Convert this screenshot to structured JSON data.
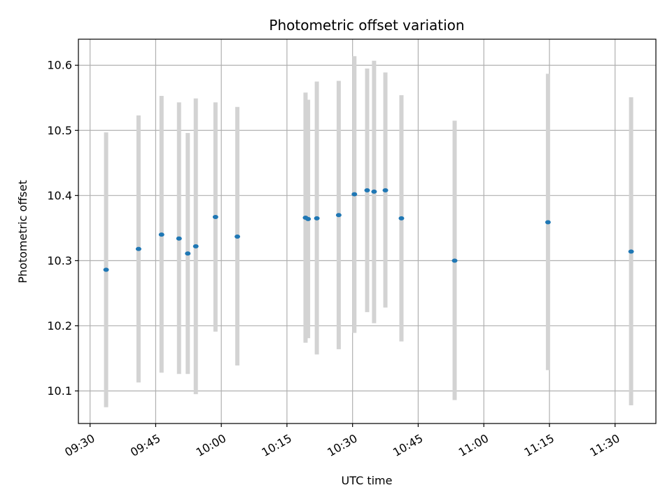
{
  "chart_data": {
    "type": "scatter",
    "title": "Photometric offset variation",
    "xlabel": "UTC time",
    "ylabel": "Photometric offset",
    "x_tick_labels": [
      "09:30",
      "09:45",
      "10:00",
      "10:15",
      "10:30",
      "10:45",
      "11:00",
      "11:15",
      "11:30"
    ],
    "x_ticks": [
      "09:30",
      "09:45",
      "10:00",
      "10:15",
      "10:30",
      "10:45",
      "11:00",
      "11:15",
      "11:30"
    ],
    "y_ticks": [
      10.1,
      10.2,
      10.3,
      10.4,
      10.5,
      10.6
    ],
    "y_tick_labels": [
      "10.1",
      "10.2",
      "10.3",
      "10.4",
      "10.5",
      "10.6"
    ],
    "xlim": [
      "09:27:20",
      "11:39:20"
    ],
    "ylim": [
      10.05,
      10.64
    ],
    "grid": true,
    "colors": {
      "point": "#1f77b4",
      "errorbar": "#d3d3d3",
      "grid": "#b0b0b0"
    },
    "series": [
      {
        "points": [
          {
            "x": "09:33:40",
            "y": 10.286,
            "ylo": 10.075,
            "yhi": 10.497
          },
          {
            "x": "09:41:05",
            "y": 10.318,
            "ylo": 10.113,
            "yhi": 10.523
          },
          {
            "x": "09:46:20",
            "y": 10.34,
            "ylo": 10.128,
            "yhi": 10.553
          },
          {
            "x": "09:50:20",
            "y": 10.334,
            "ylo": 10.126,
            "yhi": 10.543
          },
          {
            "x": "09:52:20",
            "y": 10.311,
            "ylo": 10.126,
            "yhi": 10.496
          },
          {
            "x": "09:54:10",
            "y": 10.322,
            "ylo": 10.095,
            "yhi": 10.549
          },
          {
            "x": "09:58:40",
            "y": 10.367,
            "ylo": 10.191,
            "yhi": 10.543
          },
          {
            "x": "10:03:40",
            "y": 10.337,
            "ylo": 10.139,
            "yhi": 10.536
          },
          {
            "x": "10:19:15",
            "y": 10.366,
            "ylo": 10.174,
            "yhi": 10.558
          },
          {
            "x": "10:19:50",
            "y": 10.364,
            "ylo": 10.181,
            "yhi": 10.547
          },
          {
            "x": "10:21:50",
            "y": 10.365,
            "ylo": 10.156,
            "yhi": 10.575
          },
          {
            "x": "10:26:50",
            "y": 10.37,
            "ylo": 10.164,
            "yhi": 10.576
          },
          {
            "x": "10:30:25",
            "y": 10.402,
            "ylo": 10.189,
            "yhi": 10.614
          },
          {
            "x": "10:33:20",
            "y": 10.408,
            "ylo": 10.221,
            "yhi": 10.595
          },
          {
            "x": "10:34:55",
            "y": 10.406,
            "ylo": 10.204,
            "yhi": 10.607
          },
          {
            "x": "10:37:30",
            "y": 10.408,
            "ylo": 10.228,
            "yhi": 10.589
          },
          {
            "x": "10:41:10",
            "y": 10.365,
            "ylo": 10.176,
            "yhi": 10.554
          },
          {
            "x": "10:53:20",
            "y": 10.3,
            "ylo": 10.086,
            "yhi": 10.515
          },
          {
            "x": "11:14:40",
            "y": 10.359,
            "ylo": 10.132,
            "yhi": 10.587
          },
          {
            "x": "11:33:40",
            "y": 10.314,
            "ylo": 10.078,
            "yhi": 10.551
          }
        ]
      }
    ]
  }
}
